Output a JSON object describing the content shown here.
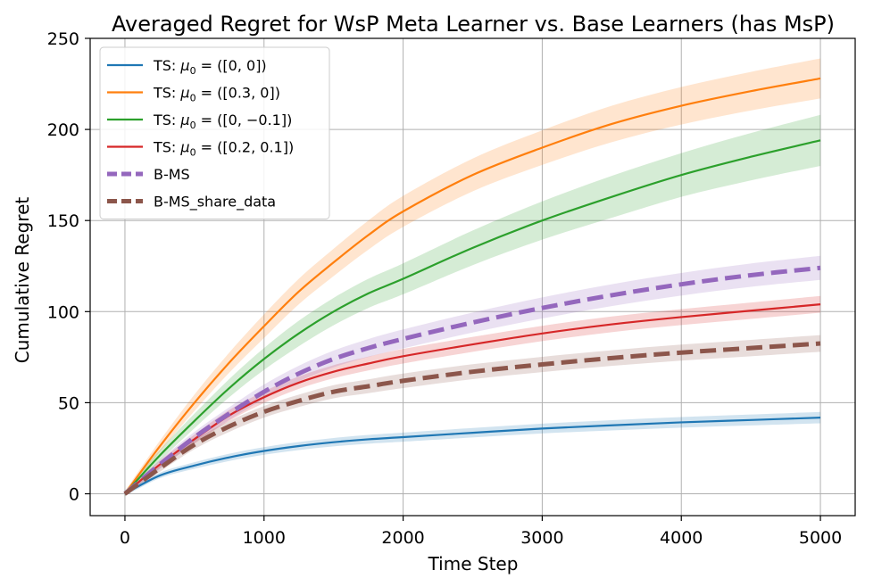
{
  "chart_data": {
    "type": "line",
    "title": "Averaged Regret for WsP Meta Learner vs. Base Learners (has MsP)",
    "xlabel": "Time Step",
    "ylabel": "Cumulative Regret",
    "xlim": [
      -250,
      5250
    ],
    "ylim": [
      -12,
      250
    ],
    "xticks": [
      0,
      1000,
      2000,
      3000,
      4000,
      5000
    ],
    "yticks": [
      0,
      50,
      100,
      150,
      200,
      250
    ],
    "grid": true,
    "legend_position": "top-left",
    "x": [
      0,
      250,
      500,
      750,
      1000,
      1250,
      1500,
      1750,
      2000,
      2500,
      3000,
      3500,
      4000,
      4500,
      5000
    ],
    "series": [
      {
        "name": "TS: μ₀ = ([0, 0])",
        "legend_main": "TS: ",
        "legend_math": "μ",
        "legend_sub": "0",
        "legend_rest": " = ([0, 0])",
        "color": "#1f77b4",
        "dash": "solid",
        "values": [
          0,
          10,
          15.5,
          20,
          23.5,
          26.2,
          28.3,
          29.9,
          31.1,
          33.5,
          35.8,
          37.6,
          39.2,
          40.5,
          41.8
        ],
        "band": [
          1.2,
          1.5,
          1.8,
          2.0,
          2.1,
          2.2,
          2.3,
          2.4,
          2.5,
          2.6,
          2.7,
          2.8,
          2.9,
          3.0,
          3.1
        ]
      },
      {
        "name": "TS: μ₀ = ([0.3, 0])",
        "legend_main": "TS: ",
        "legend_math": "μ",
        "legend_sub": "0",
        "legend_rest": " = ([0.3, 0])",
        "color": "#ff7f0e",
        "dash": "solid",
        "values": [
          0,
          26,
          50,
          72,
          92,
          111,
          127,
          142,
          155,
          175,
          190,
          203,
          213,
          221,
          228
        ],
        "band": [
          1.5,
          3,
          4.5,
          5.5,
          6.5,
          7,
          7.5,
          8,
          8.5,
          9,
          9.5,
          10,
          10.3,
          10.6,
          11
        ]
      },
      {
        "name": "TS: μ₀ = ([0, −0.1])",
        "legend_main": "TS: ",
        "legend_math": "μ",
        "legend_sub": "0",
        "legend_rest": " = ([0, −0.1])",
        "color": "#2ca02c",
        "dash": "solid",
        "values": [
          0,
          21,
          40,
          58,
          74,
          88,
          100,
          110,
          118,
          135,
          150,
          163,
          175,
          185,
          194
        ],
        "band": [
          1.5,
          3,
          4,
          5,
          6,
          7,
          7.5,
          8,
          8.5,
          9.5,
          10.5,
          11.5,
          12,
          13,
          14
        ]
      },
      {
        "name": "TS: μ₀ = ([0.2, 0.1])",
        "legend_main": "TS: ",
        "legend_math": "μ",
        "legend_sub": "0",
        "legend_rest": " = ([0.2, 0.1])",
        "color": "#d62728",
        "dash": "solid",
        "values": [
          0,
          16,
          30,
          43,
          53,
          61,
          67,
          71.5,
          75.5,
          82,
          88,
          93,
          97,
          100.5,
          104
        ],
        "band": [
          1,
          2,
          2.5,
          3,
          3.2,
          3.4,
          3.6,
          3.8,
          4,
          4.1,
          4.2,
          4.3,
          4.4,
          4.5,
          4.6
        ]
      },
      {
        "name": "B-MS",
        "legend_main": "B-MS",
        "color": "#9467bd",
        "dash": "dashed",
        "values": [
          0,
          16,
          31,
          44,
          56,
          66,
          74,
          80,
          85,
          94,
          102,
          109,
          115,
          120,
          124
        ],
        "band": [
          1,
          2.5,
          3,
          3.5,
          4,
          4.3,
          4.6,
          4.9,
          5.2,
          5.5,
          5.8,
          6,
          6.2,
          6.4,
          6.6
        ]
      },
      {
        "name": "B-MS_share_data",
        "legend_main": "B-MS_share_data",
        "color": "#8c564b",
        "dash": "dashed",
        "values": [
          0,
          14,
          27,
          37,
          45,
          51,
          56,
          59,
          62,
          67,
          71,
          74.5,
          77.5,
          80,
          82.5
        ],
        "band": [
          1,
          2,
          2.5,
          3,
          3.2,
          3.4,
          3.6,
          3.8,
          4,
          4.1,
          4.2,
          4.3,
          4.4,
          4.5,
          4.6
        ]
      }
    ]
  }
}
